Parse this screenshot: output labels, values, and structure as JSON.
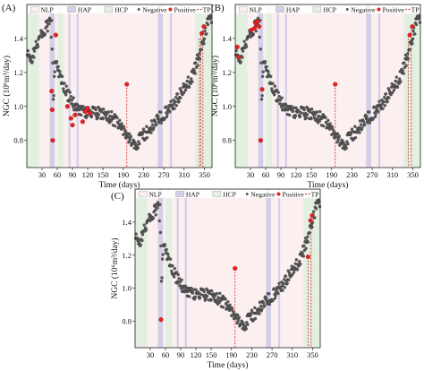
{
  "figure": {
    "legend": {
      "nlp": "NLP",
      "hap": "HAP",
      "hcp": "HCP",
      "negative": "Negative",
      "positive": "Positive",
      "tp": "TP"
    },
    "colors": {
      "nlp_band": "#fbeff0",
      "hap_band": "#d3cfe6",
      "hcp_band": "#e3efe1",
      "negative_marker": "#5a5a5a",
      "positive_marker": "#e52222",
      "tp_line": "#d43a3a"
    }
  },
  "chart_data": [
    {
      "panel_label": "(A)",
      "type": "scatter",
      "xlabel": "Time (days)",
      "ylabel": "NGC (10⁶m³/day)",
      "xlim": [
        0,
        365
      ],
      "ylim": [
        0.64,
        1.6
      ],
      "xticks": [
        30,
        60,
        90,
        120,
        150,
        190,
        230,
        270,
        310,
        350
      ],
      "xtick_labels": [
        "30",
        "60",
        "90",
        "120",
        "150",
        "190",
        "230",
        "270",
        "310",
        "350"
      ],
      "yticks": [
        0.8,
        1.0,
        1.2,
        1.4
      ],
      "ytick_labels": [
        "0.8",
        "1.0",
        "1.2",
        "1.4"
      ],
      "hcp_periods": [
        [
          0,
          24
        ],
        [
          60,
          72
        ],
        [
          332,
          365
        ]
      ],
      "hap_periods": [
        [
          45,
          55
        ],
        [
          82,
          86
        ],
        [
          98,
          102
        ],
        [
          258,
          268
        ],
        [
          282,
          286
        ]
      ],
      "positive": [
        [
          49,
          1.09
        ],
        [
          50,
          0.98
        ],
        [
          51,
          0.8
        ],
        [
          57,
          1.42
        ],
        [
          80,
          1.0
        ],
        [
          87,
          0.93
        ],
        [
          90,
          0.89
        ],
        [
          95,
          0.95
        ],
        [
          110,
          0.91
        ],
        [
          115,
          0.97
        ],
        [
          120,
          0.99
        ],
        [
          124,
          0.96
        ],
        [
          197,
          1.13
        ],
        [
          345,
          1.43
        ],
        [
          349,
          1.47
        ]
      ],
      "tp_lines": [
        [
          197,
          1.13
        ],
        [
          340,
          1.4
        ],
        [
          343,
          1.44
        ],
        [
          347,
          1.47
        ]
      ]
    },
    {
      "panel_label": "(B)",
      "type": "scatter",
      "xlabel": "Time (days)",
      "ylabel": "NGC (10⁶m³/day)",
      "xlim": [
        0,
        365
      ],
      "ylim": [
        0.64,
        1.6
      ],
      "xticks": [
        30,
        60,
        90,
        120,
        150,
        190,
        230,
        270,
        310,
        350
      ],
      "xtick_labels": [
        "30",
        "60",
        "90",
        "120",
        "150",
        "190",
        "230",
        "270",
        "310",
        "350"
      ],
      "yticks": [
        0.8,
        1.0,
        1.2,
        1.4
      ],
      "ytick_labels": [
        "0.8",
        "1.0",
        "1.2",
        "1.4"
      ],
      "hcp_periods": [
        [
          0,
          24
        ],
        [
          60,
          72
        ],
        [
          332,
          365
        ]
      ],
      "hap_periods": [
        [
          45,
          55
        ],
        [
          82,
          86
        ],
        [
          98,
          102
        ],
        [
          258,
          268
        ],
        [
          282,
          286
        ]
      ],
      "positive": [
        [
          4,
          1.35
        ],
        [
          7,
          1.29
        ],
        [
          32,
          1.45
        ],
        [
          38,
          1.46
        ],
        [
          40,
          1.49
        ],
        [
          44,
          1.5
        ],
        [
          47,
          1.47
        ],
        [
          50,
          0.8
        ],
        [
          53,
          1.1
        ],
        [
          197,
          1.13
        ],
        [
          344,
          1.42
        ],
        [
          349,
          1.47
        ]
      ],
      "tp_lines": [
        [
          197,
          1.13
        ],
        [
          341,
          1.42
        ],
        [
          347,
          1.46
        ]
      ]
    },
    {
      "panel_label": "(C)",
      "type": "scatter",
      "xlabel": "Time (days)",
      "ylabel": "NGC (10⁶m³/day)",
      "xlim": [
        0,
        365
      ],
      "ylim": [
        0.64,
        1.6
      ],
      "xticks": [
        30,
        60,
        90,
        120,
        150,
        190,
        230,
        270,
        310,
        350
      ],
      "xtick_labels": [
        "30",
        "60",
        "90",
        "120",
        "150",
        "190",
        "230",
        "270",
        "310",
        "350"
      ],
      "yticks": [
        0.8,
        1.0,
        1.2,
        1.4
      ],
      "ytick_labels": [
        "0.8",
        "1.0",
        "1.2",
        "1.4"
      ],
      "hcp_periods": [
        [
          0,
          24
        ],
        [
          60,
          72
        ],
        [
          332,
          365
        ]
      ],
      "hap_periods": [
        [
          45,
          55
        ],
        [
          82,
          86
        ],
        [
          98,
          102
        ],
        [
          258,
          268
        ],
        [
          282,
          286
        ]
      ],
      "positive": [
        [
          51,
          0.81
        ],
        [
          197,
          1.12
        ],
        [
          341,
          1.19
        ],
        [
          346,
          1.41
        ],
        [
          349,
          1.44
        ]
      ],
      "tp_lines": [
        [
          197,
          1.12
        ],
        [
          341,
          1.19
        ],
        [
          347,
          1.42
        ]
      ]
    }
  ]
}
